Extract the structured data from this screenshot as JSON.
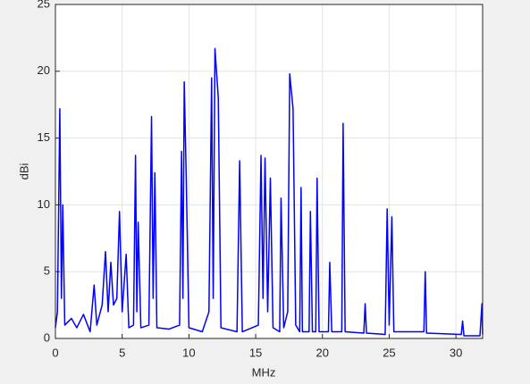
{
  "chart_data": {
    "type": "line",
    "xlabel": "MHz",
    "ylabel": "dBi",
    "x": [
      0,
      0.15,
      0.33,
      0.45,
      0.55,
      0.7,
      1.2,
      1.6,
      2.1,
      2.6,
      2.9,
      3.1,
      3.5,
      3.75,
      3.95,
      4.15,
      4.35,
      4.6,
      4.8,
      5.0,
      5.3,
      5.5,
      5.85,
      6.0,
      6.1,
      6.2,
      6.4,
      7.0,
      7.2,
      7.32,
      7.45,
      7.6,
      8.5,
      9.3,
      9.45,
      9.55,
      9.65,
      9.8,
      10.0,
      11.0,
      11.5,
      11.7,
      11.82,
      11.95,
      12.2,
      12.4,
      13.6,
      13.8,
      14.0,
      15.2,
      15.4,
      15.55,
      15.7,
      15.9,
      16.1,
      16.3,
      16.8,
      16.9,
      17.1,
      17.4,
      17.55,
      17.8,
      18.0,
      18.3,
      18.4,
      18.5,
      19.0,
      19.1,
      19.25,
      19.5,
      19.6,
      19.75,
      20.45,
      20.55,
      20.7,
      21.45,
      21.55,
      21.7,
      23.1,
      23.2,
      23.3,
      24.7,
      24.85,
      25.0,
      25.2,
      25.35,
      27.6,
      27.7,
      27.8,
      30.4,
      30.5,
      30.6,
      31.8,
      31.95,
      32
    ],
    "values": [
      0.8,
      2,
      17.2,
      3,
      10,
      1,
      1.5,
      0.8,
      1.8,
      0.5,
      4,
      1,
      2.5,
      6.5,
      2,
      5.7,
      2.5,
      3,
      9.5,
      2,
      6.3,
      0.8,
      1,
      13.7,
      2,
      8.7,
      0.8,
      1,
      16.6,
      3,
      12.4,
      0.8,
      0.7,
      1,
      14,
      3,
      19.2,
      12,
      0.8,
      0.5,
      2,
      19.5,
      3,
      21.7,
      18,
      0.8,
      0.5,
      13.3,
      0.5,
      1,
      13.7,
      3,
      13.5,
      2,
      12,
      0.8,
      0.5,
      10.5,
      0.8,
      2,
      19.8,
      17.2,
      1,
      0.5,
      11.3,
      0.5,
      0.5,
      9.5,
      0.5,
      0.5,
      12,
      0.5,
      0.5,
      5.7,
      0.5,
      0.5,
      16.1,
      0.5,
      0.4,
      2.6,
      0.4,
      0.3,
      9.7,
      1,
      9.1,
      0.5,
      0.5,
      5,
      0.4,
      0.3,
      1.3,
      0.2,
      0.2,
      2.6,
      0.3
    ],
    "color": "#0000ff",
    "xlim": [
      0,
      32
    ],
    "xticks": [
      0,
      5,
      10,
      15,
      20,
      25,
      30
    ],
    "ylim": [
      0,
      25
    ],
    "yticks": [
      0,
      5,
      10,
      15,
      20,
      25
    ],
    "grid": true
  }
}
